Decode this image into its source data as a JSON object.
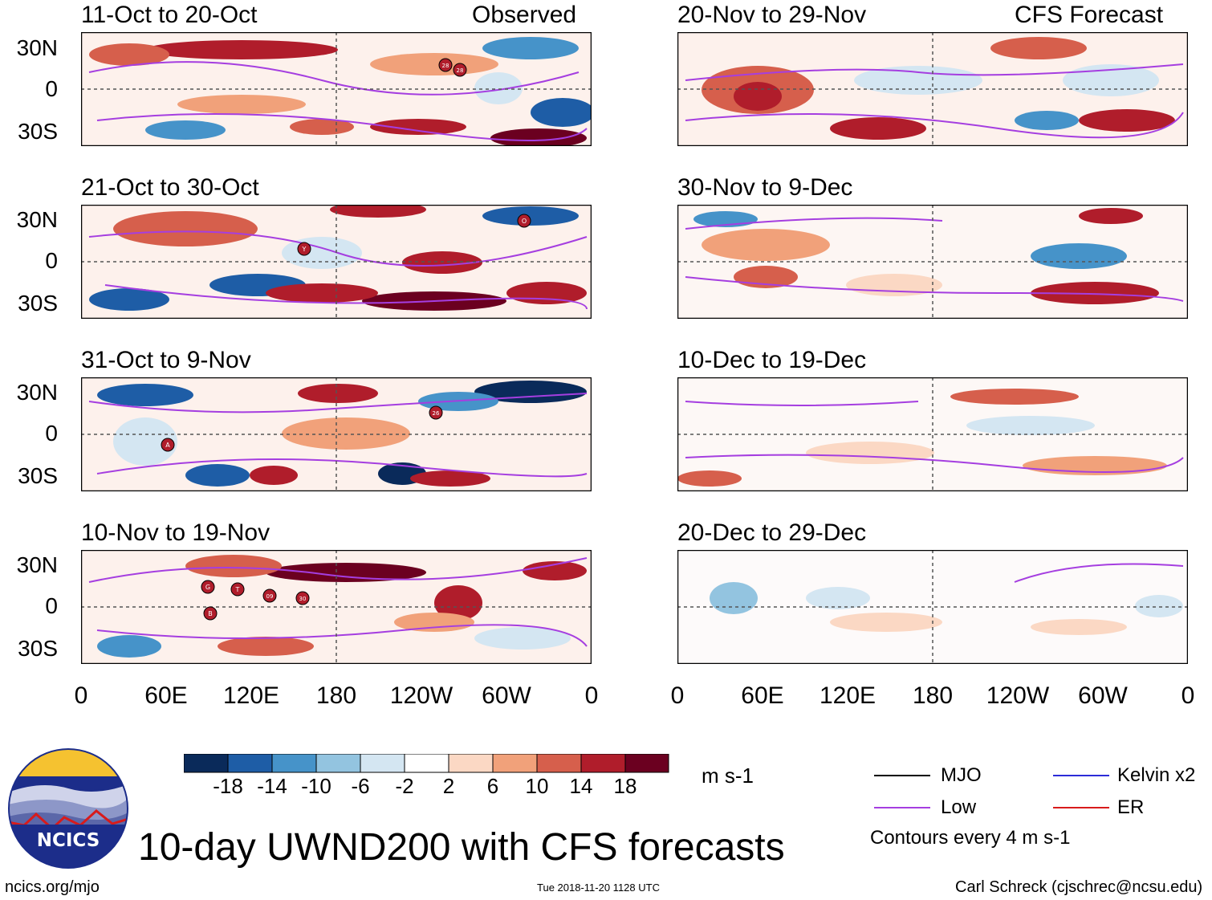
{
  "panels": {
    "observed": [
      {
        "title": "11-Oct to 20-Oct",
        "right_label": "Observed"
      },
      {
        "title": "21-Oct to 30-Oct"
      },
      {
        "title": "31-Oct to 9-Nov"
      },
      {
        "title": "10-Nov to 19-Nov"
      }
    ],
    "forecast": [
      {
        "title": "20-Nov to 29-Nov",
        "right_label": "CFS Forecast"
      },
      {
        "title": "30-Nov to 9-Dec"
      },
      {
        "title": "10-Dec to 19-Dec"
      },
      {
        "title": "20-Dec to 29-Dec"
      }
    ]
  },
  "axes": {
    "lat_labels": [
      "30N",
      "0",
      "30S"
    ],
    "lon_labels": [
      "0",
      "60E",
      "120E",
      "180",
      "120W",
      "60W",
      "0"
    ]
  },
  "storms": {
    "p0": [
      "28",
      "28"
    ],
    "p1": [
      "Y",
      "O"
    ],
    "p2": [
      "A",
      "26"
    ],
    "p3": [
      "G",
      "T",
      "09",
      "30",
      "B"
    ]
  },
  "colorbar": {
    "ticks": [
      "-18",
      "-14",
      "-10",
      "-6",
      "-2",
      "2",
      "6",
      "10",
      "14",
      "18"
    ],
    "units": "m s-1",
    "colors": [
      "#0a2a5a",
      "#1e5da6",
      "#4693c9",
      "#93c4e0",
      "#d4e6f2",
      "#ffffff",
      "#fbd8c4",
      "#f1a17a",
      "#d65f4c",
      "#b01d2b",
      "#6b0020"
    ]
  },
  "legend": {
    "items": [
      {
        "label": "MJO",
        "color": "#000000"
      },
      {
        "label": "Kelvin x2",
        "color": "#2c2cd8"
      },
      {
        "label": "Low",
        "color": "#a53ee0"
      },
      {
        "label": "ER",
        "color": "#d81b1b"
      }
    ],
    "note": "Contours every 4 m s-1"
  },
  "logo": {
    "text": "NCICS"
  },
  "title": "10-day UWND200 with CFS forecasts",
  "footer": {
    "url": "ncics.org/mjo",
    "timestamp": "Tue 2018-11-20 1128 UTC",
    "credit": "Carl Schreck (cjschrec@ncsu.edu)"
  }
}
